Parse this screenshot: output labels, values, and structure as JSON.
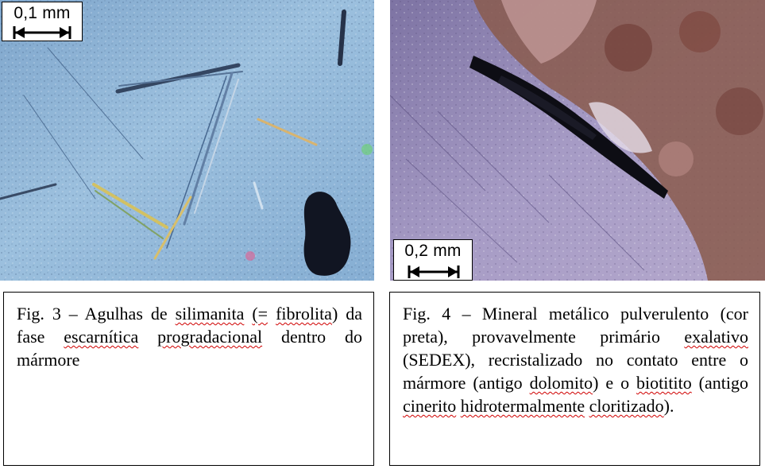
{
  "figures": [
    {
      "scale_label": "0,1 mm",
      "caption": {
        "t1": "Fig. 3 – Agulhas de ",
        "s1": "silimanita",
        "t2": " ",
        "s2": "(=",
        "t3": " ",
        "s3": "fibrolita",
        "t4": ") da fase ",
        "s4": "escarnítica",
        "t5": " ",
        "s5": "progradacional",
        "t6": " dentro do mármore"
      }
    },
    {
      "scale_label": "0,2 mm",
      "caption": {
        "t1": "Fig. 4 – Mineral metálico pulverulento (cor preta), provavelmente primário ",
        "s1": "exalativo",
        "t2": " (SEDEX), recristalizado no contato entre o mármore (antigo ",
        "s2": "dolomito",
        "t3": ") e o ",
        "s3": "biotitito",
        "t4": " (antigo ",
        "s4": "cinerito",
        "t5": " ",
        "s5": "hidrotermalmente",
        "t6": " ",
        "s6": "cloritizado",
        "t7": ")."
      }
    }
  ],
  "colors": {
    "spellcheck_underline": "#d00000",
    "fig3_background": "#8fb4d6",
    "fig4_background": "#9a8fb8",
    "fig4_rock_brown": "#8a5a4c",
    "metallic_mineral": "#0d0d14"
  }
}
